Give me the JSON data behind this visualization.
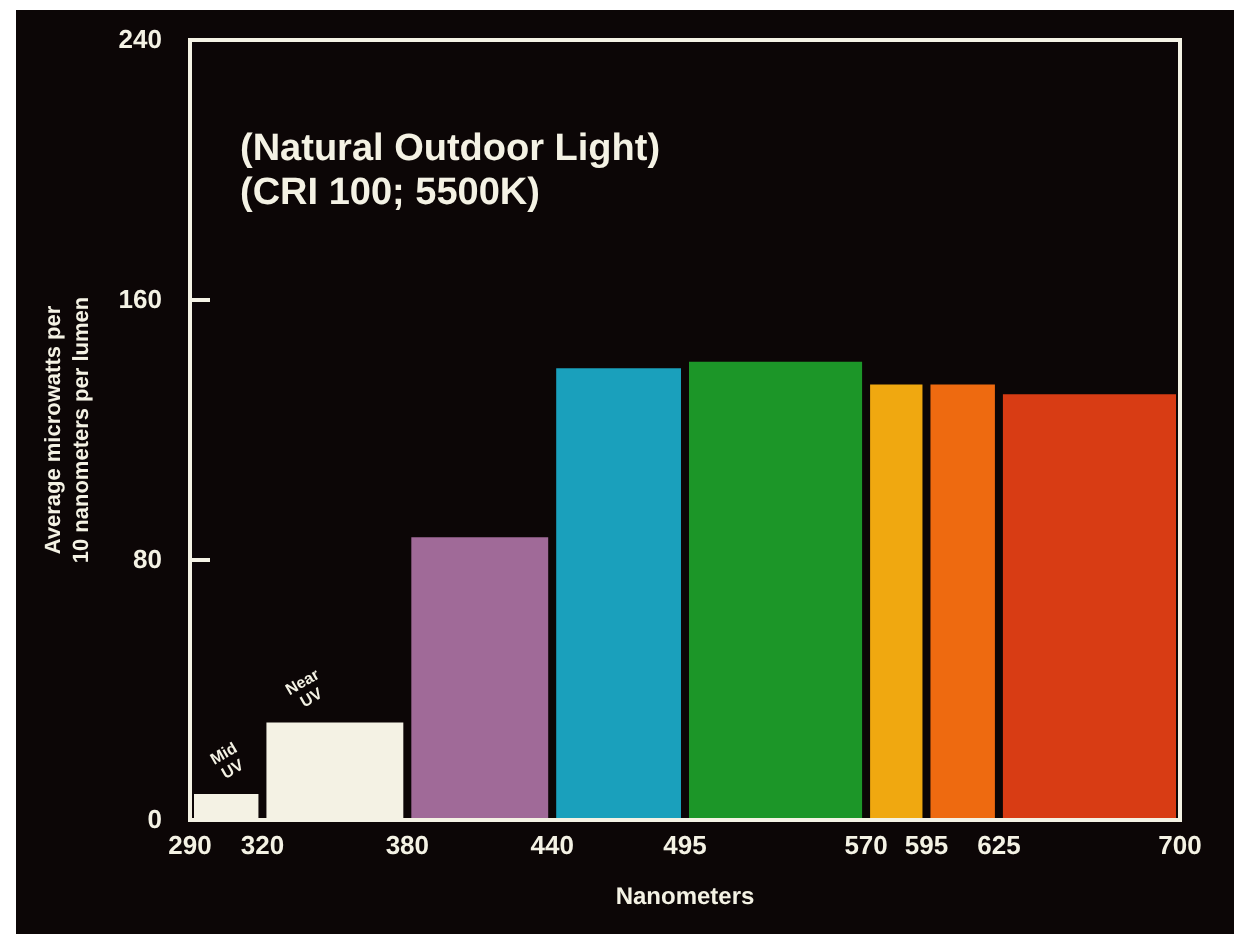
{
  "chart_data": {
    "type": "histogram",
    "title": "(Natural Outdoor Light)",
    "subtitle": "(CRI 100; 5500K)",
    "xlabel": "Nanometers",
    "ylabel": "Average microwatts per 10 nanometers per lumen",
    "bins": [
      290,
      320,
      380,
      440,
      495,
      570,
      595,
      625,
      700
    ],
    "values": [
      8,
      30,
      87,
      139,
      141,
      134,
      134,
      131
    ],
    "colors": [
      "#f4f2e4",
      "#f4f2e4",
      "#a06a98",
      "#1aa0bc",
      "#1c9628",
      "#f0a810",
      "#ee6a10",
      "#d83c14"
    ],
    "xlim": [
      290,
      700
    ],
    "xticks": [
      290,
      320,
      380,
      440,
      495,
      570,
      595,
      625,
      700
    ],
    "ylim": [
      0,
      240
    ],
    "yticks": [
      0,
      80,
      160,
      240
    ],
    "annotations": [
      "Mid UV",
      "Near UV"
    ]
  }
}
